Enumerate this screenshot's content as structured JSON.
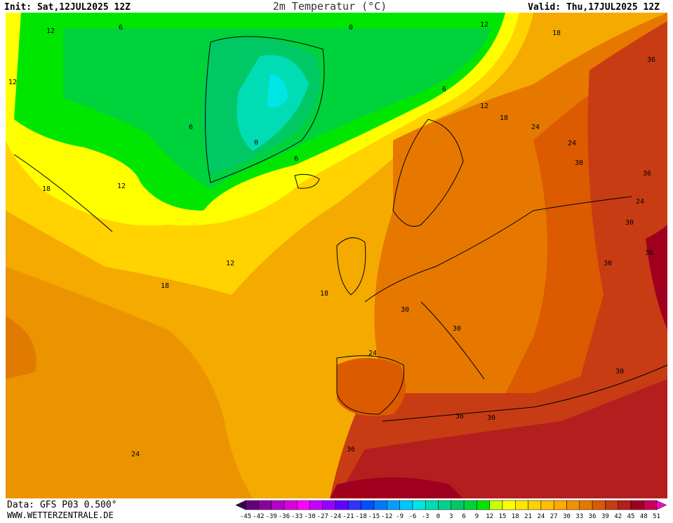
{
  "header": {
    "init": "Init: Sat,12JUL2025 12Z",
    "title": "2m Temperatur (°C)",
    "valid": "Valid: Thu,17JUL2025 12Z"
  },
  "footer": {
    "data": "Data: GFS P03 0.500°",
    "website": "WWW.WETTERZENTRALE.DE"
  },
  "colorbar": {
    "values": [
      -45,
      -42,
      -39,
      -36,
      -33,
      -30,
      -27,
      -24,
      -21,
      -18,
      -15,
      -12,
      -9,
      -6,
      -3,
      0,
      3,
      6,
      9,
      12,
      15,
      18,
      21,
      24,
      27,
      30,
      33,
      36,
      39,
      42,
      45,
      48,
      51
    ],
    "colors": [
      "#3c0050",
      "#640078",
      "#8c00a0",
      "#b400c8",
      "#dc00dc",
      "#ff00ff",
      "#c800ff",
      "#9600ff",
      "#6400ff",
      "#3232ff",
      "#0050ff",
      "#0078ff",
      "#00a0ff",
      "#00c8ff",
      "#00e6e6",
      "#00dcb4",
      "#00d28c",
      "#00c864",
      "#00d23c",
      "#00e600",
      "#c8ff00",
      "#ffff00",
      "#ffe600",
      "#ffd200",
      "#ffbe00",
      "#ffaa00",
      "#f09100",
      "#e67800",
      "#dc5a00",
      "#c83c14",
      "#b41e1e",
      "#a0001e",
      "#c8005a",
      "#ff00c8"
    ]
  },
  "contour_labels": [
    "12",
    "6",
    "0",
    "12",
    "18",
    "36",
    "12",
    "6",
    "0",
    "6",
    "6",
    "12",
    "18",
    "24",
    "24",
    "30",
    "36",
    "18",
    "12",
    "12",
    "18",
    "18",
    "30",
    "30",
    "24",
    "36",
    "30",
    "36",
    "24",
    "30",
    "30",
    "36",
    "24",
    "30"
  ]
}
